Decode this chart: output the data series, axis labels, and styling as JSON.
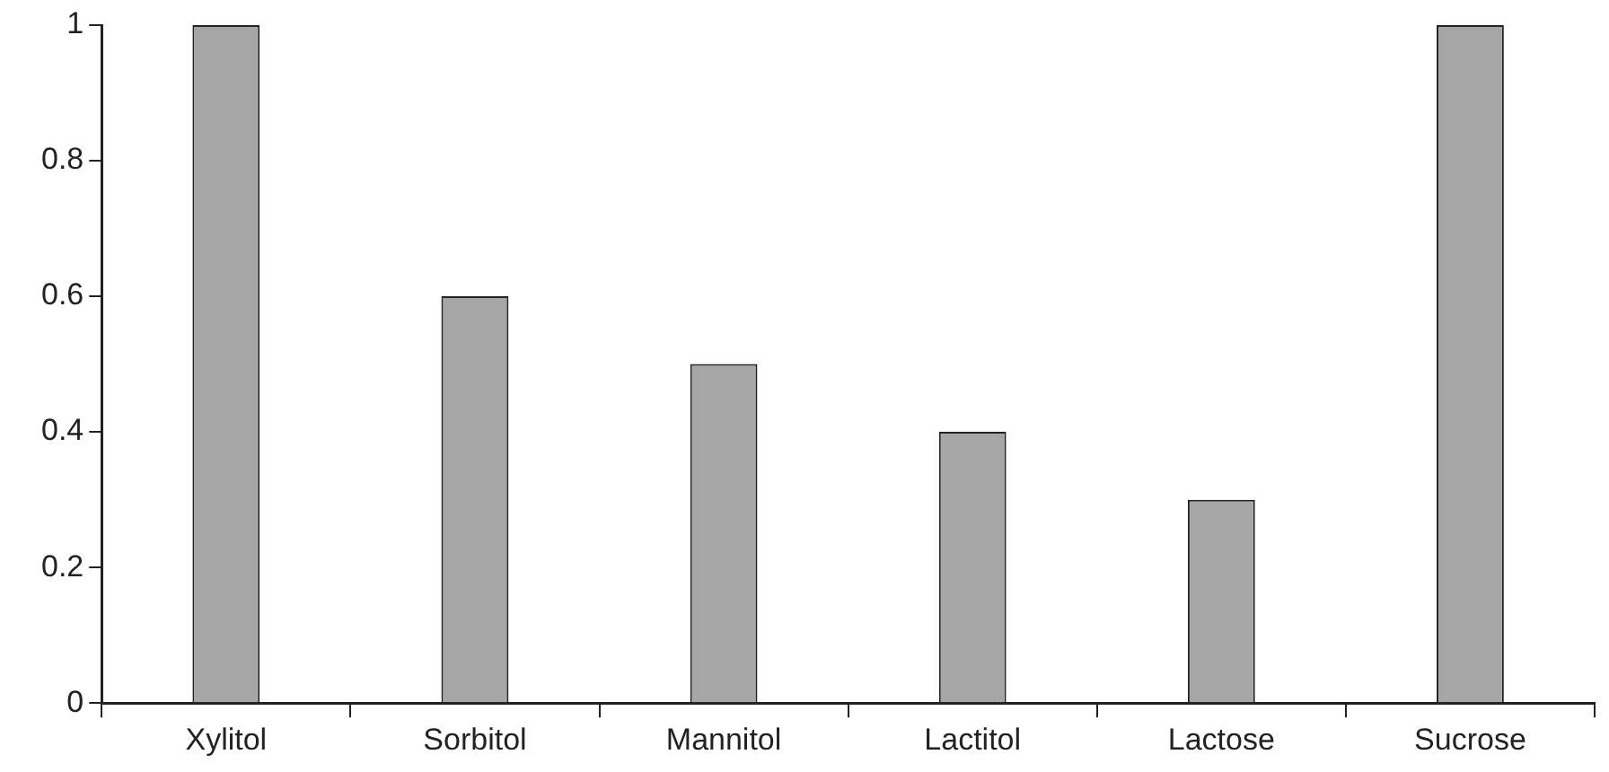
{
  "chart_data": {
    "type": "bar",
    "categories": [
      "Xylitol",
      "Sorbitol",
      "Mannitol",
      "Lactitol",
      "Lactose",
      "Sucrose"
    ],
    "values": [
      1,
      0.6,
      0.5,
      0.4,
      0.3,
      1
    ],
    "color": "#a6a6a6",
    "ylim": [
      0,
      1
    ],
    "yticks": [
      0,
      0.2,
      0.4,
      0.6,
      0.8,
      1
    ],
    "grid": false,
    "legend": false
  }
}
